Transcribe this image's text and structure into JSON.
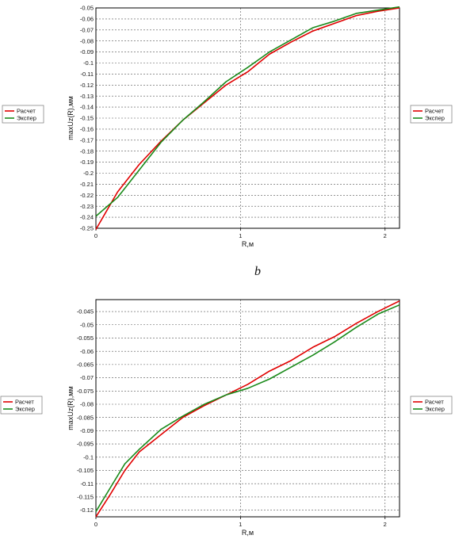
{
  "panel_label": "b",
  "colors": {
    "calc": "#e00000",
    "exp": "#1a8a1a",
    "grid": "#555555",
    "frame": "#000000"
  },
  "chart_data": [
    {
      "type": "line",
      "title": "",
      "xlabel": "R,м",
      "ylabel": "maxUz(R),мм",
      "xlim": [
        0,
        2.1
      ],
      "ylim": [
        -0.25,
        -0.05
      ],
      "xticks": [
        0,
        1,
        2
      ],
      "yticks": [
        -0.05,
        -0.06,
        -0.07,
        -0.08,
        -0.09,
        -0.1,
        -0.11,
        -0.12,
        -0.13,
        -0.14,
        -0.15,
        -0.16,
        -0.17,
        -0.18,
        -0.19,
        -0.2,
        -0.21,
        -0.22,
        -0.23,
        -0.24,
        -0.25
      ],
      "grid": true,
      "legend_left": [
        "Расчет",
        "Экспер"
      ],
      "legend_right": [
        "Расчет",
        "Экспер"
      ],
      "series": [
        {
          "name": "Расчет",
          "x": [
            0,
            0.15,
            0.3,
            0.45,
            0.6,
            0.75,
            0.9,
            1.05,
            1.2,
            1.35,
            1.5,
            1.65,
            1.8,
            1.95,
            2.1
          ],
          "y": [
            -0.251,
            -0.217,
            -0.192,
            -0.171,
            -0.152,
            -0.136,
            -0.12,
            -0.108,
            -0.092,
            -0.081,
            -0.071,
            -0.064,
            -0.057,
            -0.053,
            -0.05
          ]
        },
        {
          "name": "Экспер",
          "x": [
            0,
            0.15,
            0.3,
            0.45,
            0.6,
            0.75,
            0.9,
            1.05,
            1.2,
            1.35,
            1.5,
            1.65,
            1.8,
            1.95,
            2.1
          ],
          "y": [
            -0.239,
            -0.222,
            -0.197,
            -0.172,
            -0.152,
            -0.135,
            -0.117,
            -0.104,
            -0.09,
            -0.079,
            -0.068,
            -0.062,
            -0.055,
            -0.052,
            -0.049
          ]
        }
      ]
    },
    {
      "type": "line",
      "title": "",
      "xlabel": "R,м",
      "ylabel": "maxUz(R),мм",
      "xlim": [
        0,
        2.1
      ],
      "ylim": [
        -0.1225,
        -0.0405
      ],
      "xticks": [
        0,
        1,
        2
      ],
      "yticks": [
        -0.045,
        -0.05,
        -0.055,
        -0.06,
        -0.065,
        -0.07,
        -0.075,
        -0.08,
        -0.085,
        -0.09,
        -0.095,
        -0.1,
        -0.105,
        -0.11,
        -0.115,
        -0.12
      ],
      "grid": true,
      "legend_left": [
        "Расчет",
        "Экспер"
      ],
      "legend_right": [
        "Расчет",
        "Экспер"
      ],
      "series": [
        {
          "name": "Расчет",
          "x": [
            0,
            0.1,
            0.2,
            0.3,
            0.45,
            0.6,
            0.75,
            0.9,
            1.05,
            1.2,
            1.35,
            1.5,
            1.65,
            1.8,
            1.95,
            2.1
          ],
          "y": [
            -0.1225,
            -0.114,
            -0.105,
            -0.098,
            -0.0915,
            -0.085,
            -0.0805,
            -0.0765,
            -0.0725,
            -0.0675,
            -0.0635,
            -0.0585,
            -0.0545,
            -0.0495,
            -0.045,
            -0.041
          ]
        },
        {
          "name": "Экспер",
          "x": [
            0,
            0.1,
            0.2,
            0.3,
            0.45,
            0.6,
            0.75,
            0.9,
            1.05,
            1.2,
            1.35,
            1.5,
            1.65,
            1.8,
            1.95,
            2.1
          ],
          "y": [
            -0.1205,
            -0.1115,
            -0.1025,
            -0.097,
            -0.0895,
            -0.0845,
            -0.08,
            -0.0765,
            -0.074,
            -0.0705,
            -0.066,
            -0.0615,
            -0.0565,
            -0.051,
            -0.046,
            -0.0425
          ]
        }
      ]
    }
  ]
}
